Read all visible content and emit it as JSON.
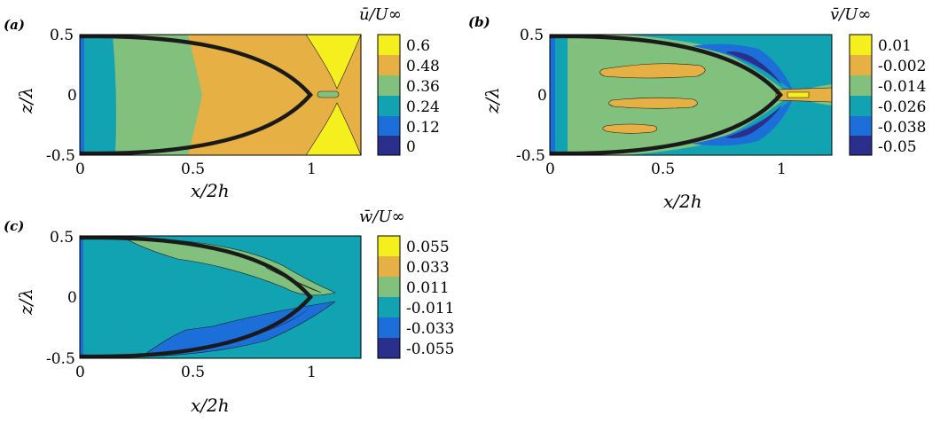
{
  "colors": {
    "yellow": "#f5ef1d",
    "orange": "#e7b044",
    "green": "#82c07d",
    "teal": "#12a3b3",
    "blue": "#1c6fd9",
    "navy": "#2a2f8c",
    "outline": "#1a1a1a"
  },
  "chart_data": [
    {
      "type": "heatmap",
      "panel_label": "(a)",
      "colorbar_title": "ū/U∞",
      "colorbar_ticks": [
        "0.6",
        "0.48",
        "0.36",
        "0.24",
        "0.12",
        "0"
      ],
      "levels": [
        0,
        0.12,
        0.24,
        0.36,
        0.48,
        0.6
      ],
      "xlabel": "x/2h",
      "ylabel": "z/λ",
      "xlim": [
        0,
        1.2
      ],
      "ylim": [
        -0.5,
        0.5
      ],
      "xticks": [
        "0",
        "0.5",
        "1"
      ],
      "yticks": [
        "0.5",
        "0",
        "-0.5"
      ]
    },
    {
      "type": "heatmap",
      "panel_label": "(b)",
      "colorbar_title": "v̄/U∞",
      "colorbar_ticks": [
        "0.01",
        "-0.002",
        "-0.014",
        "-0.026",
        "-0.038",
        "-0.05"
      ],
      "levels": [
        -0.05,
        -0.038,
        -0.026,
        -0.014,
        -0.002,
        0.01
      ],
      "xlabel": "x/2h",
      "ylabel": "z/λ",
      "xlim": [
        0,
        1.2
      ],
      "ylim": [
        -0.5,
        0.5
      ],
      "xticks": [
        "0",
        "0.5",
        "1"
      ],
      "yticks": [
        "0.5",
        "0",
        "-0.5"
      ]
    },
    {
      "type": "heatmap",
      "panel_label": "(c)",
      "colorbar_title": "w̄/U∞",
      "colorbar_ticks": [
        "0.055",
        "0.033",
        "0.011",
        "-0.011",
        "-0.033",
        "-0.055"
      ],
      "levels": [
        -0.055,
        -0.033,
        -0.011,
        0.011,
        0.033,
        0.055
      ],
      "xlabel": "x/2h",
      "ylabel": "z/λ",
      "xlim": [
        0,
        1.2
      ],
      "ylim": [
        -0.5,
        0.5
      ],
      "xticks": [
        "0",
        "0.5",
        "1"
      ],
      "yticks": [
        "0.5",
        "0",
        "-0.5"
      ]
    }
  ]
}
